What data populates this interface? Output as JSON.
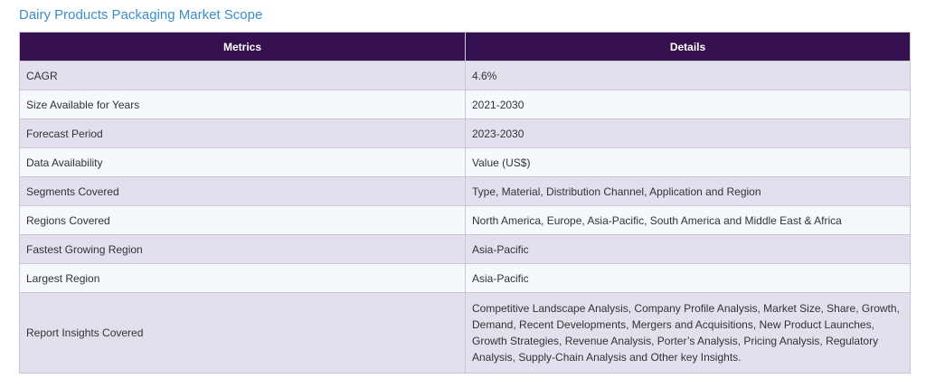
{
  "title": "Dairy Products Packaging Market Scope",
  "table": {
    "headers": [
      "Metrics",
      "Details"
    ],
    "rows": [
      {
        "metric": "CAGR",
        "details": "4.6%"
      },
      {
        "metric": "Size Available for Years",
        "details": "2021-2030"
      },
      {
        "metric": "Forecast Period",
        "details": "2023-2030"
      },
      {
        "metric": "Data Availability",
        "details": "Value (US$)"
      },
      {
        "metric": "Segments Covered",
        "details": "Type, Material, Distribution Channel, Application and Region"
      },
      {
        "metric": "Regions Covered",
        "details": "North America, Europe, Asia-Pacific, South America and Middle East & Africa"
      },
      {
        "metric": "Fastest Growing Region",
        "details": "Asia-Pacific"
      },
      {
        "metric": "Largest Region",
        "details": "Asia-Pacific"
      },
      {
        "metric": "Report Insights Covered",
        "details": "Competitive Landscape Analysis, Company Profile Analysis, Market Size, Share, Growth, Demand, Recent Developments, Mergers and Acquisitions, New Product Launches, Growth Strategies, Revenue Analysis, Porter’s Analysis, Pricing Analysis, Regulatory Analysis, Supply-Chain Analysis and Other key Insights."
      }
    ]
  },
  "colors": {
    "title": "#3a8ec9",
    "header_bg": "#35104f",
    "row_odd": "#e3dfec",
    "row_even": "#f5f8fc",
    "border": "#c9c4d6"
  }
}
